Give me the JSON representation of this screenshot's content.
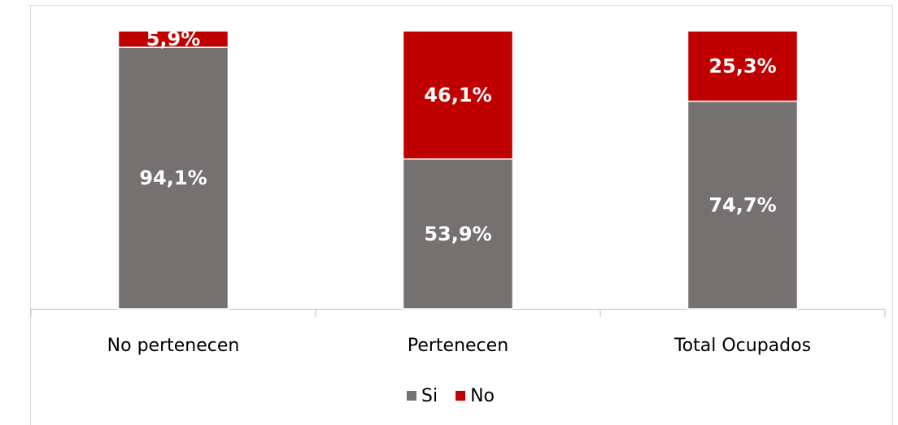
{
  "chart_data": {
    "type": "stacked_bar",
    "categories": [
      "No pertenecen",
      "Pertenecen",
      "Total Ocupados"
    ],
    "series": [
      {
        "name": "Si",
        "color": "#767171",
        "values": [
          94.1,
          53.9,
          74.7
        ],
        "value_labels": [
          "94,1%",
          "53,9%",
          "74,7%"
        ]
      },
      {
        "name": "No",
        "color": "#c00000",
        "values": [
          5.9,
          46.1,
          25.3
        ],
        "value_labels": [
          "5,9%",
          "46,1%",
          "25,3%"
        ]
      }
    ],
    "ylim": [
      0,
      100
    ],
    "legend": "bottom"
  }
}
